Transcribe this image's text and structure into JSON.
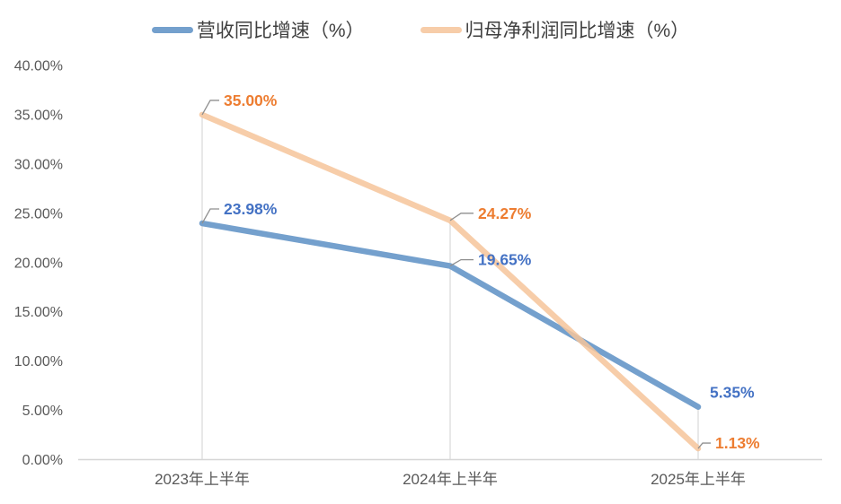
{
  "chart_data": {
    "type": "line",
    "title": "",
    "categories": [
      "2023年上半年",
      "2024年上半年",
      "2025年上半年"
    ],
    "series": [
      {
        "id": "revenue-growth",
        "name": "营收同比增速（%）",
        "values": [
          23.98,
          19.65,
          5.35
        ],
        "labels": [
          "23.98%",
          "19.65%",
          "5.35%"
        ],
        "line_color": "#74A0CD",
        "opacity": 1,
        "label_color": "#4472C4",
        "label_layout": [
          {
            "leader": true,
            "dx1": 9,
            "dy1": -16,
            "dx2": 10
          },
          {
            "leader": true,
            "dx1": 12,
            "dy1": -7,
            "dx2": 14
          },
          {
            "leader": false,
            "dx": 13,
            "dy": -10
          }
        ]
      },
      {
        "id": "net-profit-growth",
        "name": "归母净利润同比增速（%）",
        "values": [
          35.0,
          24.27,
          1.13
        ],
        "labels": [
          "35.00%",
          "24.27%",
          "1.13%"
        ],
        "line_color": "#F6C49A",
        "opacity": 0.85,
        "label_color": "#ED7D31",
        "label_layout": [
          {
            "leader": true,
            "dx1": 9,
            "dy1": -16,
            "dx2": 10
          },
          {
            "leader": true,
            "dx1": 12,
            "dy1": -8,
            "dx2": 14
          },
          {
            "leader": true,
            "dx1": 5,
            "dy1": -6,
            "dx2": 9
          }
        ]
      }
    ],
    "y_axis": {
      "min": 0,
      "max": 40,
      "step": 5,
      "tick_labels": [
        "0.00%",
        "5.00%",
        "10.00%",
        "15.00%",
        "20.00%",
        "25.00%",
        "30.00%",
        "35.00%",
        "40.00%"
      ]
    },
    "x_axis": {
      "labels": [
        "2023年上半年",
        "2024年上半年",
        "2025年上半年"
      ]
    },
    "legend_position": "top",
    "grid": false,
    "drop_lines": true,
    "colors": {
      "axis_line": "#D6D6D6",
      "drop_line": "#D9D9D9",
      "leader_line": "#8F8F8F",
      "tick_text": "#595959"
    }
  }
}
